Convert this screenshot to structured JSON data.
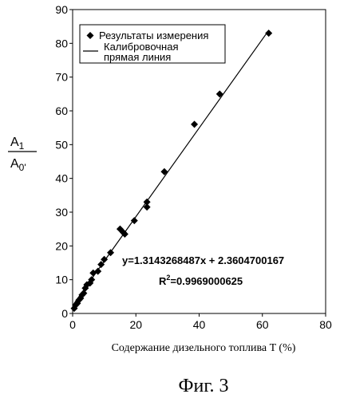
{
  "chart_data": {
    "type": "scatter",
    "xlabel": "Содержание дизельного топлива T (%)",
    "ylabel_num": "A",
    "ylabel_num_sub": "1",
    "ylabel_den": "A",
    "ylabel_den_sub": "0'",
    "xlim": [
      0,
      80
    ],
    "ylim": [
      0,
      90
    ],
    "x_ticks": [
      "0",
      "20",
      "40",
      "60",
      "80"
    ],
    "y_ticks": [
      "0",
      "10",
      "20",
      "30",
      "40",
      "50",
      "60",
      "70",
      "80",
      "90"
    ],
    "legend": {
      "position": "top-left",
      "markers_label": "Результаты измерения",
      "line_label_1": "Калибровочная",
      "line_label_2": "прямая линия"
    },
    "series": [
      {
        "name": "Результаты измерения",
        "marker": "diamond",
        "points": [
          [
            0.5,
            1.5
          ],
          [
            1.0,
            2.5
          ],
          [
            1.5,
            3.0
          ],
          [
            2.0,
            4.0
          ],
          [
            2.5,
            4.5
          ],
          [
            3.0,
            5.5
          ],
          [
            3.5,
            6.0
          ],
          [
            4.0,
            7.5
          ],
          [
            4.5,
            8.5
          ],
          [
            5.5,
            9.0
          ],
          [
            6.0,
            10.0
          ],
          [
            6.5,
            12.0
          ],
          [
            8.0,
            12.5
          ],
          [
            9.0,
            14.5
          ],
          [
            10.0,
            16.0
          ],
          [
            12.0,
            18.0
          ],
          [
            15.0,
            25.0
          ],
          [
            16.0,
            24.0
          ],
          [
            16.5,
            23.5
          ],
          [
            19.5,
            27.5
          ],
          [
            23.5,
            31.5
          ],
          [
            23.5,
            33.0
          ],
          [
            29.0,
            42.0
          ],
          [
            38.5,
            56.0
          ],
          [
            46.5,
            65.0
          ],
          [
            62.0,
            83.0
          ]
        ]
      }
    ],
    "fit": {
      "name": "Калибровочная прямая линия",
      "slope": 1.3143268487,
      "intercept": 2.3604700167,
      "x_range": [
        0,
        62
      ],
      "equation_label": "y=1.3143268487x + 2.3604700167",
      "r2_label": "R",
      "r2_sup": "2",
      "r2_value": "=0.9969000625"
    }
  },
  "caption": "Фиг. 3"
}
